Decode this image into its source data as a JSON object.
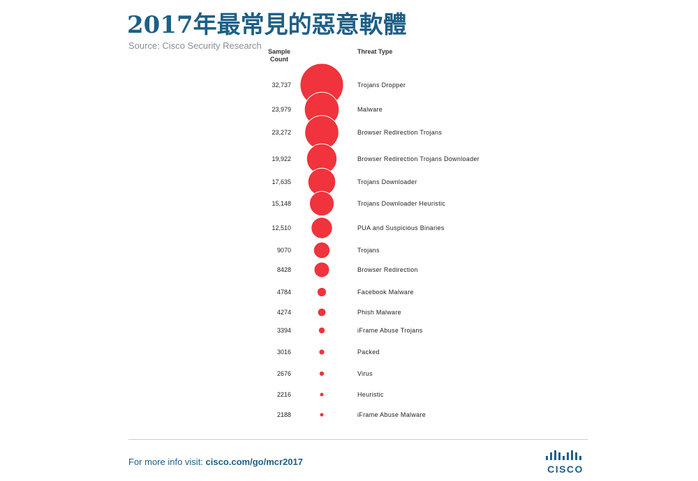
{
  "title": "2017年最常見的惡意軟體",
  "source": "Source: Cisco Security Research",
  "chart_data": {
    "type": "bubble",
    "columns": {
      "count": "Sample Count",
      "type": "Threat Type"
    },
    "rows": [
      {
        "count_label": "32,737",
        "value": 32737,
        "type": "Trojans Dropper"
      },
      {
        "count_label": "23,979",
        "value": 23979,
        "type": "Malware"
      },
      {
        "count_label": "23,272",
        "value": 23272,
        "type": "Browser Redirection Trojans"
      },
      {
        "count_label": "19,922",
        "value": 19922,
        "type": "Browser Redirection Trojans Downloader"
      },
      {
        "count_label": "17,635",
        "value": 17635,
        "type": "Trojans Downloader"
      },
      {
        "count_label": "15,148",
        "value": 15148,
        "type": "Trojans Downloader Heuristic"
      },
      {
        "count_label": "12,510",
        "value": 12510,
        "type": "PUA and Suspicious Binaries"
      },
      {
        "count_label": "9070",
        "value": 9070,
        "type": "Trojans"
      },
      {
        "count_label": "8428",
        "value": 8428,
        "type": "Browser Redirection"
      },
      {
        "count_label": "4784",
        "value": 4784,
        "type": "Facebook Malware"
      },
      {
        "count_label": "4274",
        "value": 4274,
        "type": "Phish Malware"
      },
      {
        "count_label": "3394",
        "value": 3394,
        "type": "iFrame Abuse Trojans"
      },
      {
        "count_label": "3016",
        "value": 3016,
        "type": "Packed"
      },
      {
        "count_label": "2676",
        "value": 2676,
        "type": "Virus"
      },
      {
        "count_label": "2216",
        "value": 2216,
        "type": "Heuristic"
      },
      {
        "count_label": "2188",
        "value": 2188,
        "type": "iFrame Abuse Malware"
      }
    ],
    "bubble_color": "#f0333c"
  },
  "footer": {
    "prefix": "For more info visit: ",
    "link": "cisco.com/go/mcr2017"
  },
  "logo": {
    "text": "CISCO",
    "icon": "cisco-bridge-logo-icon"
  }
}
